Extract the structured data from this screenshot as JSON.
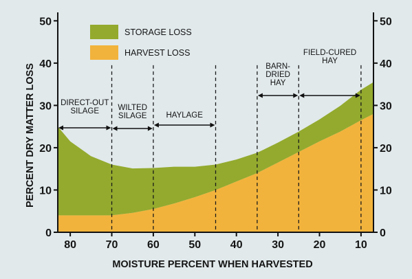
{
  "chart_data": {
    "type": "area",
    "stacked": true,
    "x_reversed": true,
    "xlabel": "MOISTURE PERCENT WHEN HARVESTED",
    "ylabel": "PERCENT DRY MATTER LOSS",
    "xlim": [
      83,
      7
    ],
    "ylim": [
      0,
      52
    ],
    "x_ticks": [
      80,
      70,
      60,
      50,
      40,
      30,
      20,
      10
    ],
    "y_ticks": [
      0,
      10,
      20,
      30,
      40,
      50
    ],
    "x": [
      83,
      80,
      75,
      70,
      65,
      60,
      55,
      50,
      45,
      40,
      35,
      30,
      25,
      20,
      15,
      10,
      7
    ],
    "series": [
      {
        "name": "HARVEST LOSS",
        "color": "#f2b33c",
        "values": [
          4,
          4,
          4,
          4,
          4.6,
          5.5,
          6.8,
          8.3,
          10,
          12,
          14,
          16.5,
          19,
          21.5,
          23.8,
          26.5,
          28
        ]
      },
      {
        "name": "STORAGE LOSS",
        "color": "#93aa2e",
        "values": [
          21,
          17.5,
          14,
          12,
          10.5,
          9.7,
          8.7,
          7.2,
          6,
          5.2,
          4.8,
          4.7,
          4.8,
          5.2,
          6.1,
          7.2,
          7.5
        ]
      }
    ],
    "legend": {
      "placement": "top-left",
      "items": [
        {
          "label": "STORAGE LOSS",
          "color": "#93aa2e"
        },
        {
          "label": "HARVEST LOSS",
          "color": "#f2b33c"
        }
      ]
    },
    "grid": false,
    "boundaries": [
      70,
      60,
      45,
      35,
      25,
      10
    ],
    "ranges": [
      {
        "lines": [
          "DIRECT-OUT",
          "SILAGE"
        ],
        "from": 83,
        "to": 70
      },
      {
        "lines": [
          "WILTED",
          "SILAGE"
        ],
        "from": 70,
        "to": 60
      },
      {
        "lines": [
          "HAYLAGE"
        ],
        "from": 60,
        "to": 45
      },
      {
        "lines": [
          "BARN-",
          "DRIED",
          "HAY"
        ],
        "from": 35,
        "to": 25
      },
      {
        "lines": [
          "FIELD-CURED",
          "HAY"
        ],
        "from": 25,
        "to": 10
      }
    ]
  }
}
